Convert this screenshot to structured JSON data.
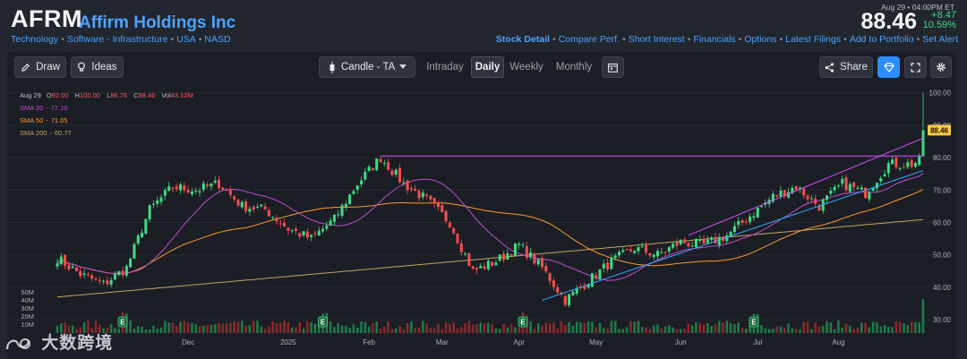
{
  "header": {
    "ticker": "AFRM",
    "company": "Affirm Holdings Inc",
    "sectors": [
      "Technology",
      "Software - Infrastructure",
      "USA",
      "NASD"
    ],
    "quote": {
      "datetime": "Aug 29 • 04:00PM ET",
      "price": "88.46",
      "change": "+8.47",
      "change_pct": "10.59%"
    },
    "links": [
      {
        "label": "Stock Detail",
        "active": true
      },
      {
        "label": "Compare Perf.",
        "active": false
      },
      {
        "label": "Short Interest",
        "active": false
      },
      {
        "label": "Financials",
        "active": false
      },
      {
        "label": "Options",
        "active": false
      },
      {
        "label": "Latest Filings",
        "active": false
      },
      {
        "label": "Add to Portfolio",
        "active": false
      },
      {
        "label": "Set Alert",
        "active": false
      }
    ]
  },
  "toolbar": {
    "draw_label": "Draw",
    "ideas_label": "Ideas",
    "chart_type_label": "Candle - TA",
    "timeframes": [
      "Intraday",
      "Daily",
      "Weekly",
      "Monthly"
    ],
    "active_timeframe": "Daily",
    "share_label": "Share",
    "icons": {
      "draw": "pencil-icon",
      "ideas": "lightbulb-icon",
      "candle": "candlestick-icon",
      "calendar": "calendar-icon",
      "share": "share-icon",
      "premium": "diamond-icon",
      "fullscreen": "fullscreen-icon",
      "settings": "gear-icon"
    }
  },
  "colors": {
    "up": "#3ddc84",
    "down": "#ff4d4d",
    "sma20": "#c04fd0",
    "sma50": "#ff9b2f",
    "sma200": "#c9a463",
    "trend_top": "#d651ff",
    "trend_bottom": "#36a7ff",
    "accent": "#2d8cff",
    "price_tag": "#f7c948"
  },
  "watermark": "大数跨境",
  "chart_data": {
    "type": "candlestick",
    "ohlc_label": {
      "date": "Aug 29",
      "open": "92.00",
      "high": "100.00",
      "low": "86.76",
      "close": "88.46",
      "volume": "43.12M"
    },
    "indicators": [
      {
        "name": "SMA 20",
        "value": "77.10"
      },
      {
        "name": "SMA 50",
        "value": "71.05"
      },
      {
        "name": "SMA 200",
        "value": "60.77"
      }
    ],
    "x_labels": [
      "Dec",
      "2025",
      "Feb",
      "Mar",
      "Apr",
      "May",
      "Jun",
      "Jul",
      "Aug"
    ],
    "y_ticks": [
      100,
      90,
      80,
      70,
      60,
      50,
      40,
      30
    ],
    "y_range": [
      27,
      101
    ],
    "volume_ticks": [
      "50M",
      "40M",
      "30M",
      "20M",
      "10M"
    ],
    "last_price_tag": "88.46",
    "earnings_marker": "E",
    "earnings_indices": [
      17,
      69,
      121,
      181
    ],
    "close_anchors": [
      [
        0,
        49
      ],
      [
        6,
        44
      ],
      [
        12,
        41
      ],
      [
        18,
        46
      ],
      [
        24,
        64
      ],
      [
        30,
        71
      ],
      [
        36,
        70
      ],
      [
        42,
        72
      ],
      [
        48,
        65
      ],
      [
        54,
        64
      ],
      [
        60,
        58
      ],
      [
        66,
        55
      ],
      [
        72,
        61
      ],
      [
        78,
        72
      ],
      [
        84,
        80
      ],
      [
        90,
        72
      ],
      [
        96,
        67
      ],
      [
        102,
        60
      ],
      [
        108,
        45
      ],
      [
        114,
        48
      ],
      [
        120,
        53
      ],
      [
        126,
        46
      ],
      [
        132,
        36
      ],
      [
        138,
        42
      ],
      [
        144,
        48
      ],
      [
        150,
        52
      ],
      [
        156,
        50
      ],
      [
        162,
        54
      ],
      [
        168,
        53
      ],
      [
        174,
        56
      ],
      [
        180,
        62
      ],
      [
        186,
        68
      ],
      [
        192,
        71
      ],
      [
        198,
        65
      ],
      [
        204,
        72
      ],
      [
        210,
        69
      ],
      [
        216,
        78
      ],
      [
        222,
        78
      ],
      [
        224,
        79
      ],
      [
        225,
        88.46
      ]
    ],
    "bar_count": 226
  }
}
